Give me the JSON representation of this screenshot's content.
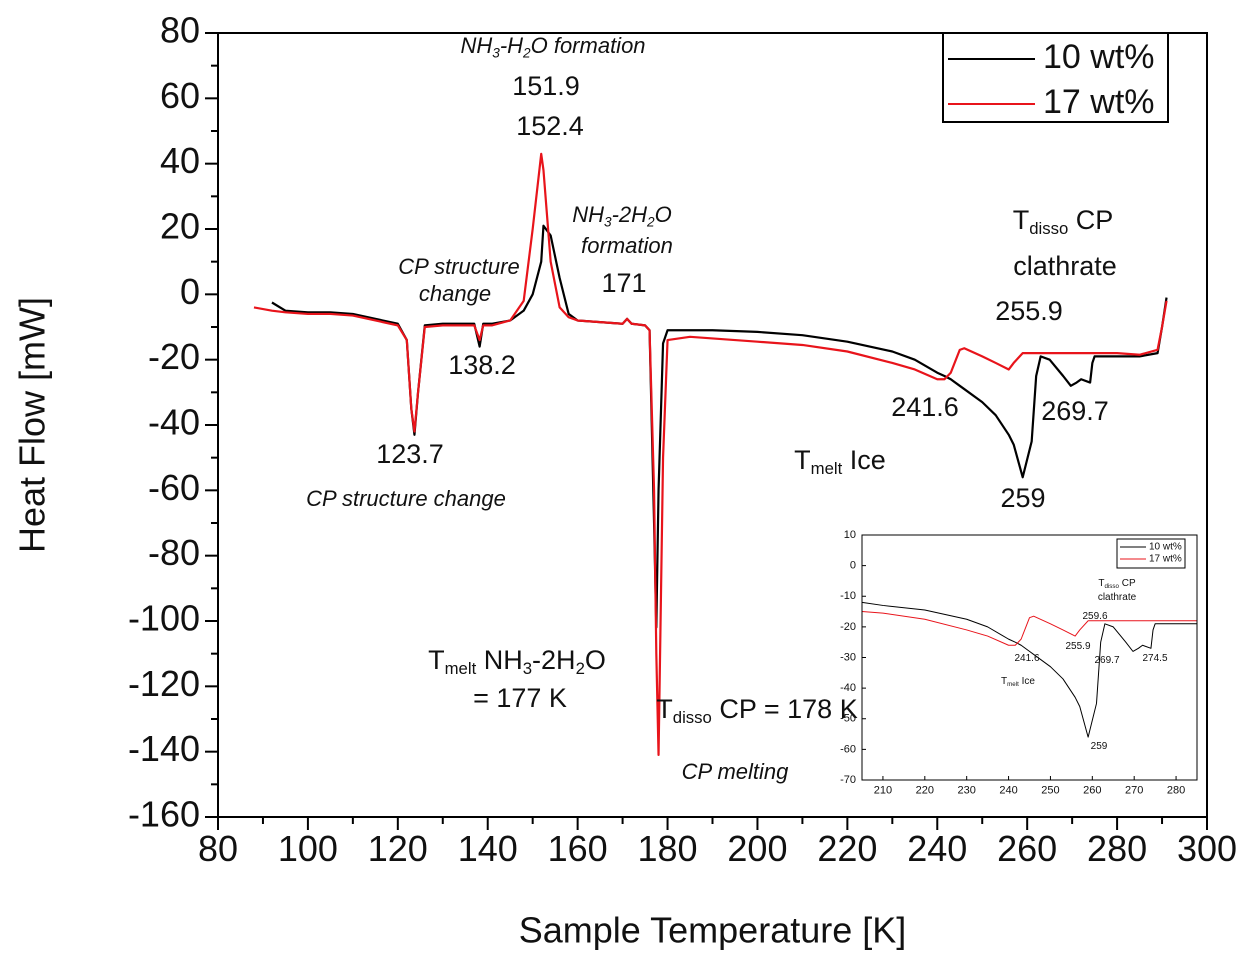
{
  "chart_data": [
    {
      "type": "line",
      "x_label": "Sample Temperature [K]",
      "y_label": "Heat Flow [mW]",
      "xlim": [
        80,
        300
      ],
      "xticks": [
        80,
        100,
        120,
        140,
        160,
        180,
        200,
        220,
        240,
        260,
        280,
        300
      ],
      "ylim": [
        -160,
        80
      ],
      "yticks": [
        -160,
        -140,
        -120,
        -100,
        -80,
        -60,
        -40,
        -20,
        0,
        20,
        40,
        60,
        80
      ],
      "legend": "upper right",
      "x": [
        88,
        92,
        95,
        100,
        105,
        110,
        115,
        120,
        122,
        123,
        123.7,
        124.5,
        126,
        130,
        135,
        137,
        138.2,
        139,
        141,
        145,
        148,
        150,
        151.9,
        152.4,
        154,
        156,
        158,
        160,
        165,
        170,
        171,
        172,
        175,
        176,
        177,
        177.5,
        178,
        179,
        180,
        185,
        190,
        200,
        210,
        220,
        230,
        235,
        240,
        241.6,
        243,
        245,
        246,
        250,
        253,
        255.9,
        257,
        259,
        261,
        262,
        263,
        265,
        268,
        269.7,
        271,
        272,
        274,
        274.5,
        275,
        277,
        280,
        285,
        289,
        290,
        291
      ],
      "series": [
        {
          "name": "10 wt%",
          "color": "#000000",
          "values": [
            null,
            -2.5,
            -5,
            -5.5,
            -5.5,
            -6,
            -7.5,
            -9,
            -14,
            -35,
            -43,
            -30,
            -9.5,
            -9,
            -9,
            -9,
            -16,
            -9,
            -9,
            -8,
            -5,
            0,
            10,
            21,
            18,
            5,
            -6,
            -8,
            -8.5,
            -9,
            -7.5,
            -9,
            -9.5,
            -11,
            -70,
            -102,
            -60,
            -15,
            -11,
            -11,
            -11,
            -11.5,
            -12.5,
            -14.5,
            -17.5,
            -20,
            -24,
            -25,
            -26,
            -28,
            -29,
            -33,
            -37,
            -43,
            -46,
            -56,
            -45,
            -25,
            -19,
            -20,
            -25,
            -28,
            -27,
            -26,
            -27,
            -21,
            -19,
            -19,
            -19,
            -19,
            -18,
            -10,
            -1
          ]
        },
        {
          "name": "17 wt%",
          "color": "#e8141b",
          "values": [
            -4,
            -5,
            -5.5,
            -6,
            -6,
            -6.5,
            -8,
            -9.5,
            -14,
            -35,
            -42,
            -30,
            -10,
            -9.5,
            -9.5,
            -9.5,
            -14,
            -9.5,
            -9.5,
            -8,
            -2,
            20,
            43,
            38,
            10,
            -4,
            -7,
            -8,
            -8.5,
            -9,
            -7.5,
            -9,
            -9.5,
            -11,
            -60,
            -110,
            -141,
            -50,
            -14,
            -13,
            -13.5,
            -14.5,
            -15.5,
            -17.5,
            -21,
            -23,
            -26,
            -26,
            -24,
            -17,
            -16.5,
            -19,
            -21,
            -23,
            -21,
            -18,
            -18,
            -18,
            -18,
            -18,
            -18,
            -18,
            -18,
            -18,
            -18,
            -18,
            -18,
            -18,
            -18,
            -18.5,
            -17,
            -10,
            -2
          ]
        }
      ],
      "annotations": [
        {
          "parts": [
            "NH",
            {
              "sub": "3"
            },
            "-H",
            {
              "sub": "2"
            },
            "O formation"
          ],
          "italic": true
        },
        {
          "parts": [
            "151.9"
          ],
          "color": "#e8141b"
        },
        {
          "parts": [
            "152.4"
          ]
        },
        {
          "parts": [
            "NH",
            {
              "sub": "3"
            },
            "-2H",
            {
              "sub": "2"
            },
            "O"
          ],
          "italic": true
        },
        {
          "parts": [
            "formation"
          ],
          "italic": true
        },
        {
          "parts": [
            "171"
          ]
        },
        {
          "parts": [
            "CP structure"
          ],
          "italic": true
        },
        {
          "parts": [
            "change"
          ],
          "italic": true
        },
        {
          "parts": [
            "138.2"
          ]
        },
        {
          "parts": [
            "123.7"
          ]
        },
        {
          "parts": [
            "CP structure change"
          ],
          "italic": true
        },
        {
          "parts": [
            "T",
            {
              "sub": "melt"
            },
            " NH",
            {
              "sub": "3"
            },
            "-2H",
            {
              "sub": "2"
            },
            "O"
          ]
        },
        {
          "parts": [
            "= 177 K"
          ]
        },
        {
          "parts": [
            "T",
            {
              "sub": "disso"
            },
            " CP = 178 K"
          ]
        },
        {
          "parts": [
            "CP melting"
          ],
          "italic": true
        },
        {
          "parts": [
            "T",
            {
              "sub": "melt"
            },
            " Ice"
          ]
        },
        {
          "parts": [
            "T",
            {
              "sub": "disso"
            },
            " CP"
          ]
        },
        {
          "parts": [
            "clathrate"
          ]
        },
        {
          "parts": [
            "255.9"
          ],
          "color": "#e8141b"
        },
        {
          "parts": [
            "241.6"
          ],
          "color": "#e8141b"
        },
        {
          "parts": [
            "269.7"
          ]
        },
        {
          "parts": [
            "259"
          ]
        }
      ]
    },
    {
      "type": "line",
      "xlim": [
        205,
        285
      ],
      "xticks": [
        210,
        220,
        230,
        240,
        250,
        260,
        270,
        280
      ],
      "ylim": [
        -70,
        10
      ],
      "yticks": [
        -70,
        -60,
        -50,
        -40,
        -30,
        -20,
        -10,
        0,
        10
      ],
      "legend": "upper right",
      "x": [
        205,
        210,
        220,
        230,
        235,
        240,
        241.6,
        243,
        245,
        246,
        250,
        253,
        255.9,
        257,
        259,
        261,
        262,
        263,
        265,
        268,
        269.7,
        271,
        272,
        274,
        274.5,
        275,
        277,
        280,
        285
      ],
      "series": [
        {
          "name": "10 wt%",
          "color": "#000000",
          "values": [
            -12,
            -13,
            -14.5,
            -17.5,
            -20,
            -24,
            -25,
            -26,
            -28,
            -29,
            -33,
            -37,
            -43,
            -46,
            -56,
            -45,
            -25,
            -19,
            -20,
            -25,
            -28,
            -27,
            -26,
            -27,
            -21,
            -19,
            -19,
            -19,
            -19
          ]
        },
        {
          "name": "17 wt%",
          "color": "#e8141b",
          "values": [
            -15,
            -15.5,
            -17.5,
            -21,
            -23,
            -26,
            -26,
            -24,
            -17,
            -16.5,
            -19,
            -21,
            -23,
            -21,
            -18,
            -18,
            -18,
            -18,
            -18,
            -18,
            -18,
            -18,
            -18,
            -18,
            -18,
            -18,
            -18,
            -18,
            -18
          ]
        }
      ],
      "annotations": [
        {
          "parts": [
            "T",
            {
              "sub": "disso"
            },
            " CP"
          ]
        },
        {
          "parts": [
            "clathrate"
          ]
        },
        {
          "parts": [
            "259.6"
          ],
          "color": "#e8141b"
        },
        {
          "parts": [
            "255.9"
          ],
          "color": "#e8141b"
        },
        {
          "parts": [
            "241.6"
          ],
          "color": "#e8141b"
        },
        {
          "parts": [
            "269.7"
          ]
        },
        {
          "parts": [
            "274.5"
          ]
        },
        {
          "parts": [
            "T",
            {
              "sub": "melt"
            },
            " Ice"
          ]
        },
        {
          "parts": [
            "259"
          ]
        }
      ]
    }
  ]
}
